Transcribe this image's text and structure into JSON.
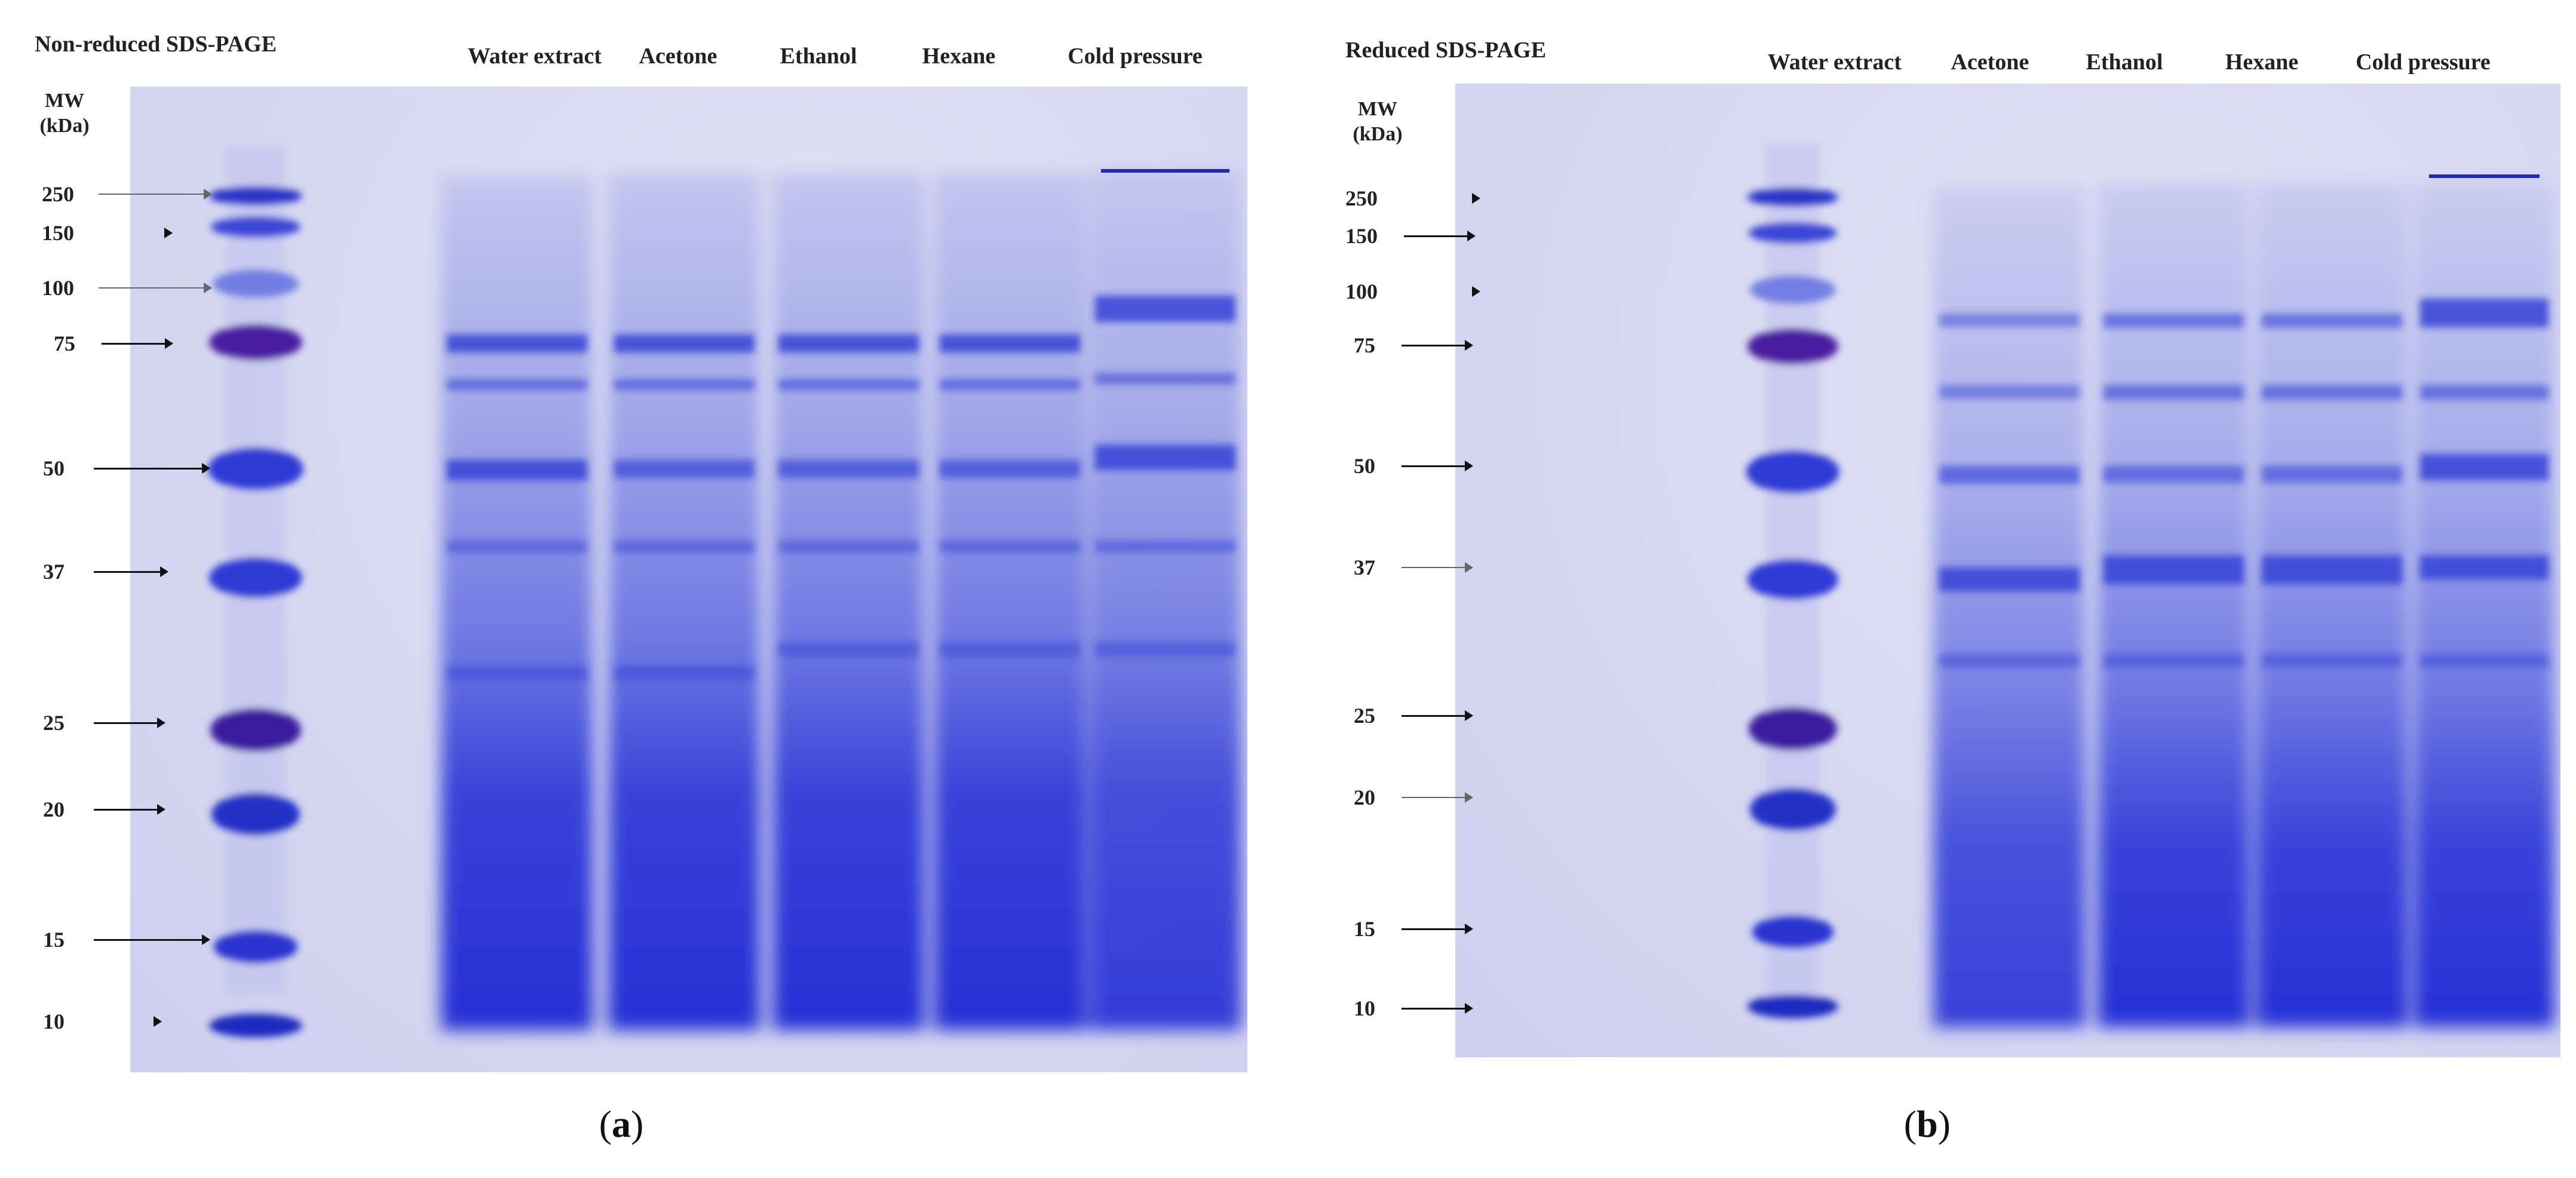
{
  "panels": [
    {
      "title": "Non-reduced SDS-PAGE",
      "mw_label_line1": "MW",
      "mw_label_line2": "(kDa)",
      "lanes": [
        "Water extract",
        "Acetone",
        "Ethanol",
        "Hexane",
        "Cold pressure"
      ],
      "markers": [
        "250",
        "150",
        "100",
        "75",
        "50",
        "37",
        "25",
        "20",
        "15",
        "10"
      ],
      "caption_letter": "a"
    },
    {
      "title": "Reduced SDS-PAGE",
      "mw_label_line1": "MW",
      "mw_label_line2": "(kDa)",
      "lanes": [
        "Water extract",
        "Acetone",
        "Ethanol",
        "Hexane",
        "Cold pressure"
      ],
      "markers": [
        "250",
        "150",
        "100",
        "75",
        "50",
        "37",
        "25",
        "20",
        "15",
        "10"
      ],
      "caption_letter": "b"
    }
  ],
  "colors": {
    "gel_background": "#d7d9f2",
    "band_blue": "#2c36d8",
    "ladder_purple": "#4a1a9a"
  }
}
